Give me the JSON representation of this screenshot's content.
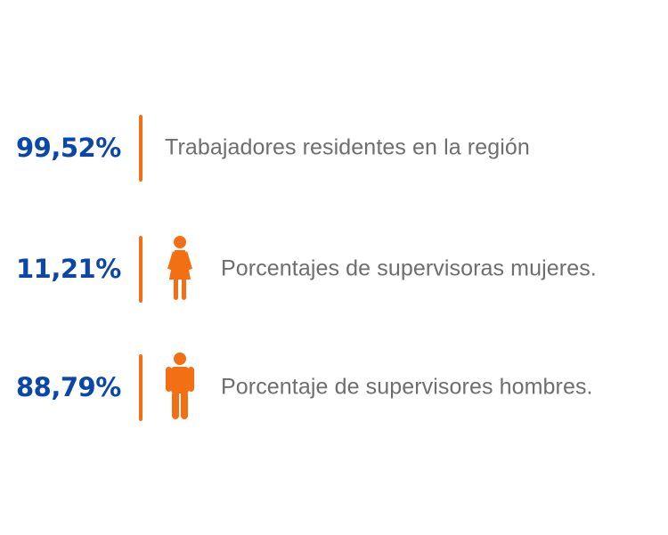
{
  "stats": [
    {
      "value": "99,52%",
      "label": "Trabajadores residentes en la región",
      "icon": null
    },
    {
      "value": "11,21%",
      "label": "Porcentajes de supervisoras mujeres.",
      "icon": "female-person-icon"
    },
    {
      "value": "88,79%",
      "label": "Porcentaje de supervisores hombres.",
      "icon": "male-person-icon"
    }
  ],
  "colors": {
    "value": "#0b47a8",
    "accent": "#f36f13",
    "label": "#6e6e6e",
    "background": "#ffffff"
  }
}
